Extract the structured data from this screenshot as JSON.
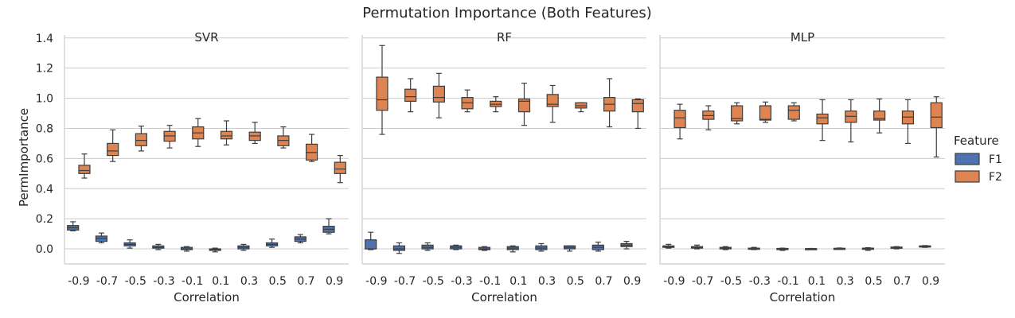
{
  "chart_data": {
    "type": "box",
    "title": "Permutation Importance (Both Features)",
    "xlabel": "Correlation",
    "ylabel": "PermImportance",
    "ylim": [
      -0.1,
      1.42
    ],
    "yticks": [
      "0.0",
      "0.2",
      "0.4",
      "0.6",
      "0.8",
      "1.0",
      "1.2",
      "1.4"
    ],
    "grid": true,
    "categories": [
      "-0.9",
      "-0.7",
      "-0.5",
      "-0.3",
      "-0.1",
      "0.1",
      "0.3",
      "0.5",
      "0.7",
      "0.9"
    ],
    "legend": {
      "title": "Feature",
      "position": "right",
      "items": [
        {
          "label": "F1",
          "color": "#4c72b0"
        },
        {
          "label": "F2",
          "color": "#dd8452"
        }
      ]
    },
    "panels": [
      {
        "title": "SVR",
        "series": [
          {
            "name": "F1",
            "boxes": [
              [
                0.12,
                0.125,
                0.14,
                0.155,
                0.18
              ],
              [
                0.04,
                0.05,
                0.07,
                0.085,
                0.105
              ],
              [
                0.005,
                0.02,
                0.03,
                0.04,
                0.06
              ],
              [
                -0.005,
                0.005,
                0.01,
                0.02,
                0.03
              ],
              [
                -0.015,
                -0.005,
                0.0,
                0.01,
                0.015
              ],
              [
                -0.02,
                -0.01,
                -0.005,
                0.0,
                0.005
              ],
              [
                -0.01,
                0.0,
                0.01,
                0.02,
                0.03
              ],
              [
                0.01,
                0.02,
                0.03,
                0.04,
                0.065
              ],
              [
                0.04,
                0.05,
                0.065,
                0.08,
                0.095
              ],
              [
                0.1,
                0.11,
                0.13,
                0.15,
                0.2
              ]
            ]
          },
          {
            "name": "F2",
            "boxes": [
              [
                0.47,
                0.5,
                0.52,
                0.555,
                0.63
              ],
              [
                0.58,
                0.62,
                0.65,
                0.7,
                0.79
              ],
              [
                0.65,
                0.685,
                0.72,
                0.765,
                0.815
              ],
              [
                0.67,
                0.715,
                0.75,
                0.78,
                0.82
              ],
              [
                0.68,
                0.73,
                0.77,
                0.81,
                0.865
              ],
              [
                0.69,
                0.73,
                0.75,
                0.78,
                0.85
              ],
              [
                0.7,
                0.72,
                0.75,
                0.775,
                0.84
              ],
              [
                0.67,
                0.685,
                0.72,
                0.75,
                0.81
              ],
              [
                0.58,
                0.59,
                0.64,
                0.695,
                0.76
              ],
              [
                0.44,
                0.5,
                0.53,
                0.575,
                0.62
              ]
            ]
          }
        ]
      },
      {
        "title": "RF",
        "series": [
          {
            "name": "F1",
            "boxes": [
              [
                -0.005,
                0.0,
                0.0,
                0.06,
                0.11
              ],
              [
                -0.03,
                -0.01,
                0.0,
                0.02,
                0.04
              ],
              [
                -0.01,
                0.0,
                0.01,
                0.025,
                0.04
              ],
              [
                -0.005,
                0.0,
                0.01,
                0.02,
                0.025
              ],
              [
                -0.01,
                -0.005,
                0.0,
                0.01,
                0.015
              ],
              [
                -0.02,
                -0.005,
                0.005,
                0.015,
                0.02
              ],
              [
                -0.015,
                -0.005,
                0.005,
                0.02,
                0.035
              ],
              [
                -0.015,
                0.0,
                0.01,
                0.02,
                0.02
              ],
              [
                -0.015,
                -0.005,
                0.01,
                0.025,
                0.045
              ],
              [
                0.0,
                0.015,
                0.025,
                0.035,
                0.05
              ]
            ]
          },
          {
            "name": "F2",
            "boxes": [
              [
                0.76,
                0.92,
                0.99,
                1.14,
                1.35
              ],
              [
                0.91,
                0.98,
                1.01,
                1.06,
                1.13
              ],
              [
                0.87,
                0.975,
                1.005,
                1.08,
                1.165
              ],
              [
                0.91,
                0.93,
                0.97,
                1.005,
                1.055
              ],
              [
                0.91,
                0.945,
                0.96,
                0.98,
                1.01
              ],
              [
                0.82,
                0.91,
                0.98,
                0.995,
                1.1
              ],
              [
                0.84,
                0.945,
                0.96,
                1.025,
                1.085
              ],
              [
                0.91,
                0.935,
                0.95,
                0.97,
                0.97
              ],
              [
                0.81,
                0.915,
                0.96,
                1.005,
                1.13
              ],
              [
                0.8,
                0.91,
                0.965,
                0.99,
                0.995
              ]
            ]
          }
        ]
      },
      {
        "title": "MLP",
        "series": [
          {
            "name": "F1",
            "boxes": [
              [
                0.005,
                0.01,
                0.015,
                0.02,
                0.03
              ],
              [
                0.0,
                0.005,
                0.01,
                0.015,
                0.025
              ],
              [
                -0.005,
                0.0,
                0.005,
                0.01,
                0.015
              ],
              [
                -0.005,
                0.0,
                0.003,
                0.005,
                0.01
              ],
              [
                -0.01,
                -0.005,
                0.0,
                0.003,
                0.005
              ],
              [
                -0.003,
                -0.002,
                0.0,
                0.002,
                0.003
              ],
              [
                -0.003,
                0.0,
                0.002,
                0.004,
                0.006
              ],
              [
                -0.01,
                -0.003,
                0.0,
                0.005,
                0.008
              ],
              [
                0.0,
                0.004,
                0.008,
                0.012,
                0.015
              ],
              [
                0.01,
                0.012,
                0.015,
                0.02,
                0.022
              ]
            ]
          },
          {
            "name": "F2",
            "boxes": [
              [
                0.73,
                0.805,
                0.87,
                0.92,
                0.96
              ],
              [
                0.79,
                0.86,
                0.885,
                0.915,
                0.95
              ],
              [
                0.83,
                0.85,
                0.865,
                0.95,
                0.97
              ],
              [
                0.84,
                0.855,
                0.86,
                0.95,
                0.975
              ],
              [
                0.85,
                0.86,
                0.92,
                0.95,
                0.97
              ],
              [
                0.72,
                0.83,
                0.87,
                0.895,
                0.99
              ],
              [
                0.71,
                0.84,
                0.88,
                0.915,
                0.99
              ],
              [
                0.77,
                0.855,
                0.865,
                0.915,
                0.995
              ],
              [
                0.7,
                0.83,
                0.875,
                0.915,
                0.99
              ],
              [
                0.61,
                0.805,
                0.875,
                0.97,
                1.01
              ]
            ]
          }
        ]
      }
    ]
  }
}
